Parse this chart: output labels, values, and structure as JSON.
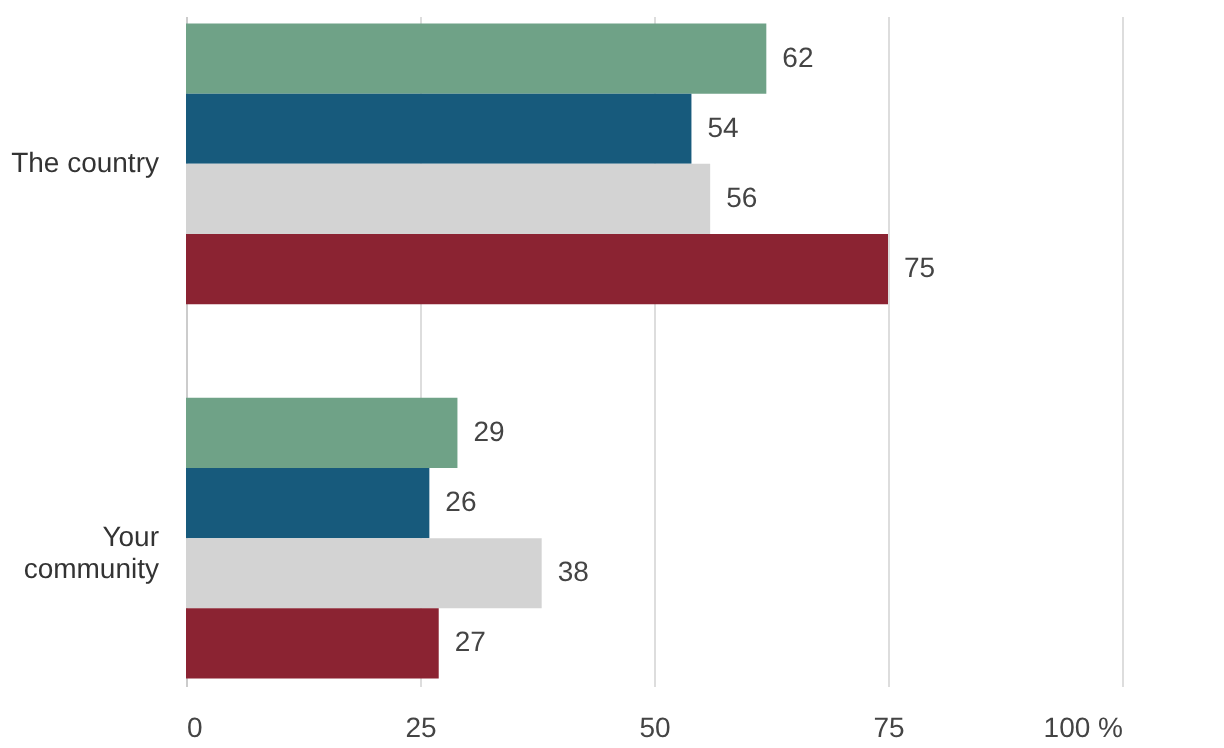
{
  "chart_data": {
    "type": "bar",
    "orientation": "horizontal",
    "categories": [
      "The country",
      "Your community"
    ],
    "series": [
      {
        "color": "#6fa287",
        "values": [
          62,
          29
        ]
      },
      {
        "color": "#175a7c",
        "values": [
          54,
          26
        ]
      },
      {
        "color": "#d3d3d3",
        "values": [
          56,
          38
        ]
      },
      {
        "color": "#8b2332",
        "values": [
          75,
          27
        ]
      }
    ],
    "xlim": [
      0,
      100
    ],
    "xticks": [
      0,
      25,
      50,
      75,
      {
        "value": 100,
        "label": "100 %"
      }
    ],
    "grid": "x",
    "data_labels": true,
    "legend": false
  }
}
